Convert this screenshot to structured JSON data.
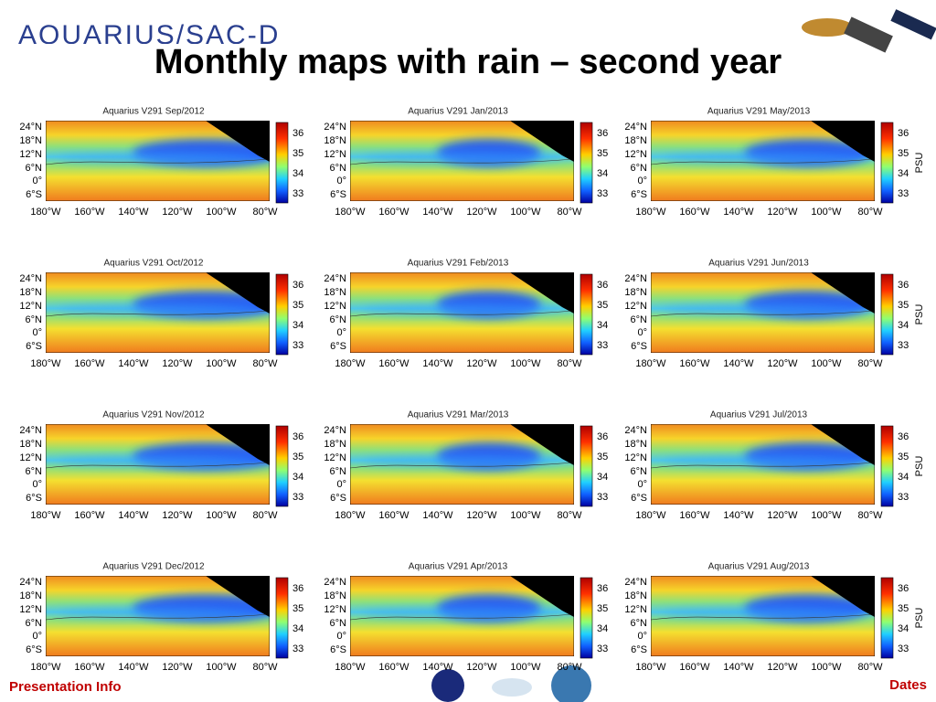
{
  "header": {
    "logo": "AQUARIUS/SAC-D",
    "title": "Monthly maps with rain – second year"
  },
  "map_axes": {
    "y_labels": [
      "24°N",
      "18°N",
      "12°N",
      "6°N",
      "0°",
      "6°S"
    ],
    "x_labels": [
      "180°W",
      "160°W",
      "140°W",
      "120°W",
      "100°W",
      "80°W"
    ]
  },
  "colorbar_ticks": [
    "36",
    "35",
    "34",
    "33"
  ],
  "panels": [
    {
      "title": "Aquarius V291   Sep/2012"
    },
    {
      "title": "Aquarius V291   Jan/2013"
    },
    {
      "title": "Aquarius V291   May/2013",
      "colorbar_label": "PSU"
    },
    {
      "title": "Aquarius V291   Oct/2012"
    },
    {
      "title": "Aquarius V291   Feb/2013"
    },
    {
      "title": "Aquarius V291   Jun/2013",
      "colorbar_label": "PSU"
    },
    {
      "title": "Aquarius V291   Nov/2012"
    },
    {
      "title": "Aquarius V291   Mar/2013"
    },
    {
      "title": "Aquarius V291   Jul/2013",
      "colorbar_label": "PSU"
    },
    {
      "title": "Aquarius V291   Dec/2012"
    },
    {
      "title": "Aquarius V291   Apr/2013"
    },
    {
      "title": "Aquarius V291   Aug/2013",
      "colorbar_label": "PSU"
    }
  ],
  "footer": {
    "left": "Presentation Info",
    "right": "Dates"
  }
}
